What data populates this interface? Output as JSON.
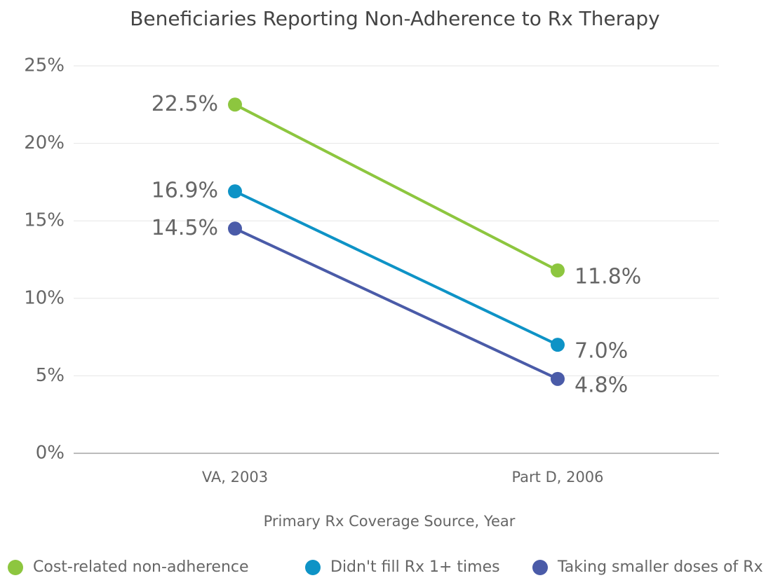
{
  "chart_data": {
    "type": "line",
    "title": "Beneficiaries Reporting Non-Adherence to Rx Therapy",
    "x_label": "Primary Rx Coverage Source, Year",
    "categories": [
      "VA, 2003",
      "Part D, 2006"
    ],
    "series": [
      {
        "name": "Cost-related non-adherence",
        "color": "#8dc63f",
        "values": [
          22.5,
          11.8
        ],
        "value_labels": [
          "22.5%",
          "11.8%"
        ]
      },
      {
        "name": "Didn't fill Rx 1+ times",
        "color": "#0e93c6",
        "values": [
          16.9,
          7.0
        ],
        "value_labels": [
          "16.9%",
          "7.0%"
        ]
      },
      {
        "name": "Taking smaller doses of Rx",
        "color": "#4a5ba8",
        "values": [
          14.5,
          4.8
        ],
        "value_labels": [
          "14.5%",
          "4.8%"
        ]
      }
    ],
    "ylim": [
      0,
      25
    ],
    "yticks": [
      {
        "value": 0,
        "label": "0%"
      },
      {
        "value": 5,
        "label": "5%"
      },
      {
        "value": 10,
        "label": "10%"
      },
      {
        "value": 15,
        "label": "15%"
      },
      {
        "value": 20,
        "label": "20%"
      },
      {
        "value": 25,
        "label": "25%"
      }
    ],
    "grid": true,
    "legend": "bottom"
  }
}
